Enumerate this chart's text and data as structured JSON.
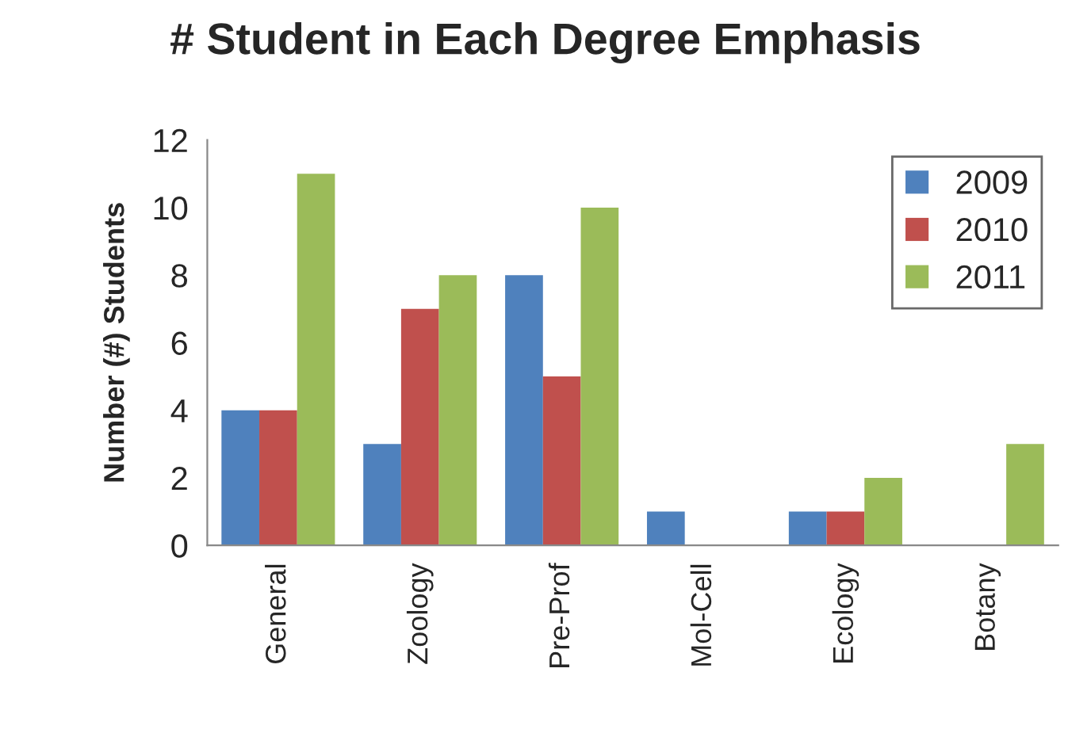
{
  "chart_data": {
    "type": "bar",
    "title": "# Student in Each Degree Emphasis",
    "ylabel": "Number (#) Students",
    "categories": [
      "General",
      "Zoology",
      "Pre-Prof",
      "Mol-Cell",
      "Ecology",
      "Botany"
    ],
    "series": [
      {
        "name": "2009",
        "color": "#4f81bd",
        "values": [
          4,
          3,
          8,
          1,
          1,
          null
        ]
      },
      {
        "name": "2010",
        "color": "#c0504d",
        "values": [
          4,
          7,
          5,
          null,
          1,
          null
        ]
      },
      {
        "name": "2011",
        "color": "#9bbb59",
        "values": [
          11,
          8,
          10,
          null,
          2,
          3
        ]
      }
    ],
    "ylim": [
      0,
      12
    ],
    "yticks": [
      0,
      2,
      4,
      6,
      8,
      10,
      12
    ],
    "grid": false,
    "legend": "top right"
  }
}
